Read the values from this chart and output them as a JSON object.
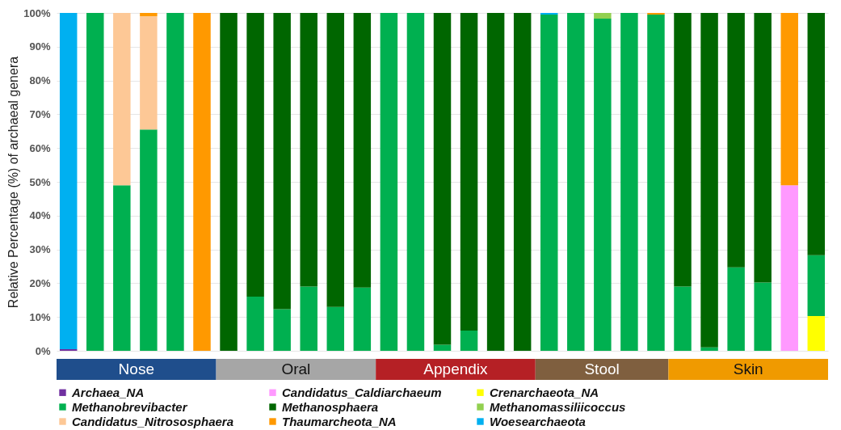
{
  "chart_data": {
    "type": "bar",
    "stacked": true,
    "ylabel": "Relative Percentage (%) of archaeal genera",
    "categories": [
      null,
      null,
      null,
      null,
      null,
      null,
      null,
      null,
      null,
      null,
      null,
      null,
      null,
      null,
      null,
      null,
      null,
      null,
      null,
      null,
      null,
      null,
      null,
      null,
      null,
      null,
      null,
      null,
      null
    ],
    "ylim": [
      0,
      100
    ],
    "yticks": [
      {
        "value": 0,
        "label": "0%"
      },
      {
        "value": 10,
        "label": "10%"
      },
      {
        "value": 20,
        "label": "20%"
      },
      {
        "value": 30,
        "label": "30%"
      },
      {
        "value": 40,
        "label": "40%"
      },
      {
        "value": 50,
        "label": "50%"
      },
      {
        "value": 60,
        "label": "60%"
      },
      {
        "value": 70,
        "label": "70%"
      },
      {
        "value": 80,
        "label": "80%"
      },
      {
        "value": 90,
        "label": "90%"
      },
      {
        "value": 100,
        "label": "100%"
      }
    ],
    "grid": "y",
    "legend": "bottom",
    "tick_labels": "y",
    "series": [
      {
        "name": "Archaea_NA",
        "color": "#7030a0",
        "values": [
          0.5,
          null,
          null,
          null,
          null,
          null,
          null,
          null,
          null,
          null,
          null,
          null,
          null,
          null,
          null,
          null,
          null,
          null,
          null,
          null,
          null,
          null,
          null,
          null,
          null,
          null,
          null,
          null,
          null
        ]
      },
      {
        "name": "Candidatus_Caldiarchaeum",
        "color": "#ff99ff",
        "values": [
          null,
          null,
          null,
          null,
          null,
          null,
          null,
          null,
          null,
          null,
          null,
          null,
          null,
          null,
          null,
          null,
          null,
          null,
          null,
          null,
          null,
          null,
          null,
          null,
          null,
          null,
          null,
          49,
          null
        ]
      },
      {
        "name": "Crenarchaeota_NA",
        "color": "#ffff00",
        "values": [
          null,
          null,
          null,
          null,
          null,
          null,
          null,
          null,
          null,
          null,
          null,
          null,
          null,
          null,
          null,
          null,
          null,
          null,
          null,
          null,
          null,
          null,
          null,
          null,
          null,
          null,
          null,
          null,
          10.3
        ]
      },
      {
        "name": "Methanobrevibacter",
        "color": "#00b050",
        "values": [
          null,
          100,
          49,
          65.5,
          100,
          null,
          null,
          16,
          12.3,
          19,
          13,
          18.7,
          100,
          100,
          1.8,
          6,
          null,
          null,
          99.5,
          100,
          98.3,
          100,
          99.5,
          19,
          1,
          24.7,
          20.2,
          null,
          18
        ]
      },
      {
        "name": "Methanosphaera",
        "color": "#006600",
        "values": [
          null,
          null,
          null,
          null,
          null,
          null,
          100,
          84,
          87.7,
          81,
          87,
          81.3,
          null,
          null,
          98.2,
          94,
          100,
          100,
          null,
          null,
          null,
          null,
          null,
          81,
          99,
          75.3,
          79.8,
          null,
          71.7
        ]
      },
      {
        "name": "Methanomassiliicoccus",
        "color": "#92d050",
        "values": [
          null,
          null,
          null,
          null,
          null,
          null,
          null,
          null,
          null,
          null,
          null,
          null,
          null,
          null,
          null,
          null,
          null,
          null,
          null,
          null,
          1.7,
          null,
          null,
          null,
          null,
          null,
          null,
          null,
          null
        ]
      },
      {
        "name": "Candidatus_Nitrososphaera",
        "color": "#fdc896",
        "values": [
          null,
          null,
          51,
          33.5,
          null,
          null,
          null,
          null,
          null,
          null,
          null,
          null,
          null,
          null,
          null,
          null,
          null,
          null,
          null,
          null,
          null,
          null,
          null,
          null,
          null,
          null,
          null,
          null,
          null
        ]
      },
      {
        "name": "Thaumarcheota_NA",
        "color": "#ff9900",
        "values": [
          null,
          null,
          null,
          1,
          null,
          100,
          null,
          null,
          null,
          null,
          null,
          null,
          null,
          null,
          null,
          null,
          null,
          null,
          null,
          null,
          null,
          null,
          0.5,
          null,
          null,
          null,
          null,
          51,
          null
        ]
      },
      {
        "name": "Woesearchaeota",
        "color": "#00b0f0",
        "values": [
          99.5,
          null,
          null,
          null,
          null,
          null,
          null,
          null,
          null,
          null,
          null,
          null,
          null,
          null,
          null,
          null,
          null,
          null,
          0.5,
          null,
          null,
          null,
          null,
          null,
          null,
          null,
          null,
          null,
          null
        ]
      }
    ],
    "annotations": [
      "Nose",
      "Oral",
      "Appendix",
      "Stool",
      "Skin"
    ]
  }
}
